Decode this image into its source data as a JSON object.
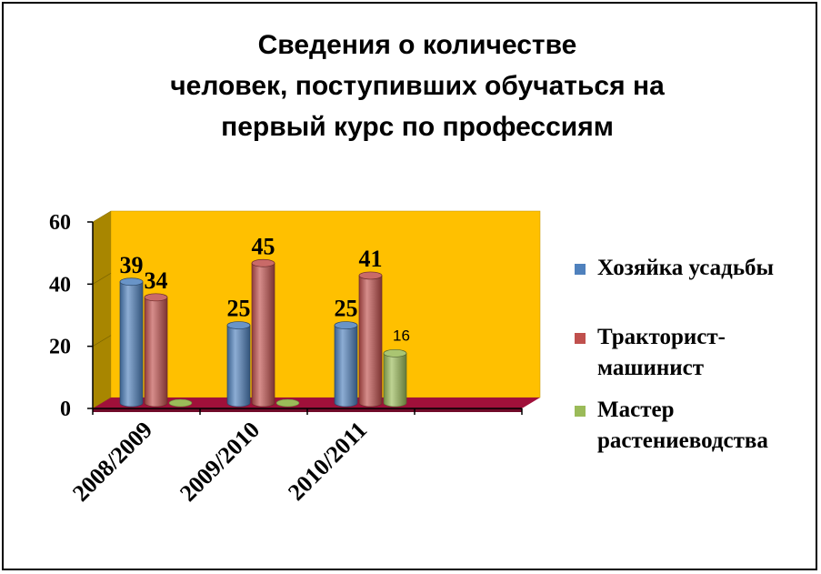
{
  "chart_data": {
    "type": "bar",
    "title_lines": [
      "Сведения о количестве",
      "человек, поступивших обучаться на",
      "первый курс  по профессиям"
    ],
    "categories": [
      "2008/2009",
      "2009/2010",
      "2010/2011"
    ],
    "yticks": [
      "0",
      "20",
      "40",
      "60"
    ],
    "ylim": [
      0,
      60
    ],
    "series": [
      {
        "name": "Хозяйка усадьбы",
        "name_lines": [
          "Хозяйка усадьбы"
        ],
        "color": "#4F81BD",
        "values": [
          39,
          25,
          25
        ],
        "labels": [
          "39",
          "25",
          "25"
        ]
      },
      {
        "name": "Тракторист-машинист",
        "name_lines": [
          "Тракторист-",
          "машинист"
        ],
        "color": "#C0504D",
        "values": [
          34,
          45,
          41
        ],
        "labels": [
          "34",
          "45",
          "41"
        ]
      },
      {
        "name": "Мастер растениеводства",
        "name_lines": [
          "Мастер",
          "растениеводства"
        ],
        "color": "#9BBB59",
        "values": [
          0,
          0,
          16
        ],
        "labels": [
          "",
          "",
          "16"
        ]
      }
    ],
    "legend_position": "right",
    "background_wall": "#FFC000",
    "side_wall": "#A88600",
    "floor": "#A0103A"
  }
}
